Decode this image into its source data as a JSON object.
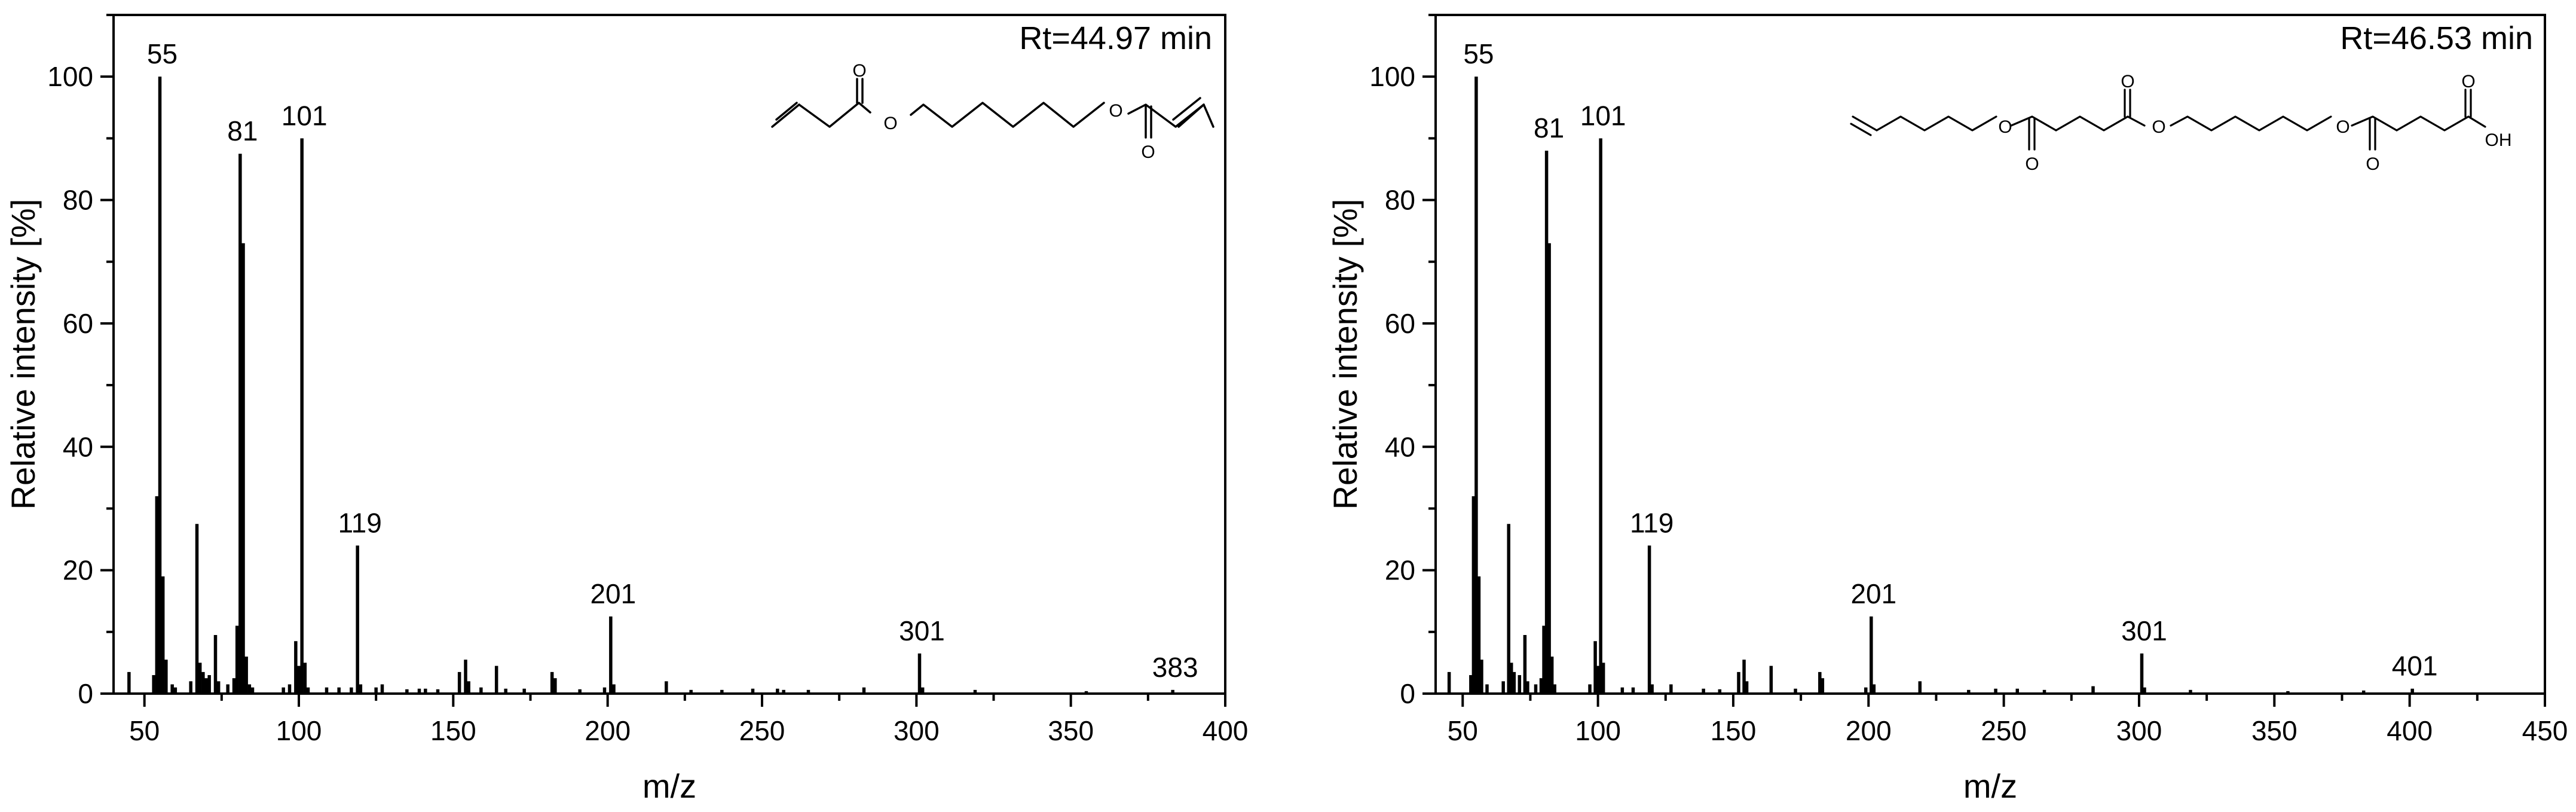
{
  "chart_data": [
    {
      "type": "bar",
      "xlabel": "m/z",
      "ylabel": "Relative intensity [%]",
      "xlim": [
        40,
        400
      ],
      "ylim": [
        0,
        110
      ],
      "xticks": [
        50,
        100,
        150,
        200,
        250,
        300,
        350,
        400
      ],
      "yticks": [
        0,
        20,
        40,
        60,
        80,
        100
      ],
      "annotation": "Rt=44.97 min",
      "structure_atoms": [
        "O",
        "O",
        "O",
        "O"
      ],
      "peaks": [
        {
          "x": 45,
          "y": 3.5
        },
        {
          "x": 53,
          "y": 3
        },
        {
          "x": 54,
          "y": 32
        },
        {
          "x": 55,
          "y": 100,
          "label": "55"
        },
        {
          "x": 56,
          "y": 19
        },
        {
          "x": 57,
          "y": 5.5
        },
        {
          "x": 59,
          "y": 1.5
        },
        {
          "x": 60,
          "y": 1
        },
        {
          "x": 65,
          "y": 2
        },
        {
          "x": 67,
          "y": 27.5
        },
        {
          "x": 68,
          "y": 5
        },
        {
          "x": 69,
          "y": 3.5
        },
        {
          "x": 70,
          "y": 2.5
        },
        {
          "x": 71,
          "y": 3
        },
        {
          "x": 73,
          "y": 9.5
        },
        {
          "x": 74,
          "y": 2
        },
        {
          "x": 77,
          "y": 1.5
        },
        {
          "x": 79,
          "y": 2.5
        },
        {
          "x": 80,
          "y": 11
        },
        {
          "x": 81,
          "y": 87.5,
          "label": "81"
        },
        {
          "x": 82,
          "y": 73
        },
        {
          "x": 83,
          "y": 6
        },
        {
          "x": 84,
          "y": 1.5
        },
        {
          "x": 85,
          "y": 1
        },
        {
          "x": 95,
          "y": 1
        },
        {
          "x": 97,
          "y": 1.5
        },
        {
          "x": 99,
          "y": 8.5
        },
        {
          "x": 100,
          "y": 4.5
        },
        {
          "x": 101,
          "y": 90,
          "label": "101"
        },
        {
          "x": 102,
          "y": 5
        },
        {
          "x": 103,
          "y": 1
        },
        {
          "x": 109,
          "y": 1
        },
        {
          "x": 113,
          "y": 1
        },
        {
          "x": 117,
          "y": 1
        },
        {
          "x": 119,
          "y": 24,
          "label": "119"
        },
        {
          "x": 120,
          "y": 1.5
        },
        {
          "x": 125,
          "y": 1
        },
        {
          "x": 127,
          "y": 1.5
        },
        {
          "x": 135,
          "y": 0.7
        },
        {
          "x": 139,
          "y": 0.8
        },
        {
          "x": 141,
          "y": 0.8
        },
        {
          "x": 145,
          "y": 0.7
        },
        {
          "x": 152,
          "y": 3.5
        },
        {
          "x": 154,
          "y": 5.5
        },
        {
          "x": 155,
          "y": 2
        },
        {
          "x": 159,
          "y": 1
        },
        {
          "x": 164,
          "y": 4.5
        },
        {
          "x": 167,
          "y": 0.8
        },
        {
          "x": 173,
          "y": 0.8
        },
        {
          "x": 182,
          "y": 3.5
        },
        {
          "x": 183,
          "y": 2.5
        },
        {
          "x": 191,
          "y": 0.7
        },
        {
          "x": 199,
          "y": 1
        },
        {
          "x": 201,
          "y": 12.5,
          "label": "201"
        },
        {
          "x": 202,
          "y": 1.5
        },
        {
          "x": 219,
          "y": 2
        },
        {
          "x": 227,
          "y": 0.6
        },
        {
          "x": 237,
          "y": 0.6
        },
        {
          "x": 247,
          "y": 0.8
        },
        {
          "x": 255,
          "y": 0.8
        },
        {
          "x": 257,
          "y": 0.6
        },
        {
          "x": 265,
          "y": 0.6
        },
        {
          "x": 283,
          "y": 1
        },
        {
          "x": 301,
          "y": 6.5,
          "label": "301"
        },
        {
          "x": 302,
          "y": 1
        },
        {
          "x": 319,
          "y": 0.6
        },
        {
          "x": 355,
          "y": 0.4
        },
        {
          "x": 383,
          "y": 0.6,
          "label": "383"
        }
      ]
    },
    {
      "type": "bar",
      "xlabel": "m/z",
      "ylabel": "Relative intensity [%]",
      "xlim": [
        40,
        450
      ],
      "ylim": [
        0,
        110
      ],
      "xticks": [
        50,
        100,
        150,
        200,
        250,
        300,
        350,
        400,
        450
      ],
      "yticks": [
        0,
        20,
        40,
        60,
        80,
        100
      ],
      "annotation": "Rt=46.53 min",
      "structure_atoms": [
        "O",
        "O",
        "O",
        "O",
        "O",
        "O",
        "O",
        "OH"
      ],
      "peaks": [
        {
          "x": 45,
          "y": 3.5
        },
        {
          "x": 53,
          "y": 3
        },
        {
          "x": 54,
          "y": 32
        },
        {
          "x": 55,
          "y": 100,
          "label": "55"
        },
        {
          "x": 56,
          "y": 19
        },
        {
          "x": 57,
          "y": 5.5
        },
        {
          "x": 59,
          "y": 1.5
        },
        {
          "x": 65,
          "y": 2
        },
        {
          "x": 67,
          "y": 27.5
        },
        {
          "x": 68,
          "y": 5
        },
        {
          "x": 69,
          "y": 3.5
        },
        {
          "x": 71,
          "y": 3
        },
        {
          "x": 73,
          "y": 9.5
        },
        {
          "x": 74,
          "y": 2
        },
        {
          "x": 77,
          "y": 1.5
        },
        {
          "x": 79,
          "y": 2.5
        },
        {
          "x": 80,
          "y": 11
        },
        {
          "x": 81,
          "y": 88,
          "label": "81"
        },
        {
          "x": 82,
          "y": 73
        },
        {
          "x": 83,
          "y": 6
        },
        {
          "x": 84,
          "y": 1.5
        },
        {
          "x": 97,
          "y": 1.5
        },
        {
          "x": 99,
          "y": 8.5
        },
        {
          "x": 100,
          "y": 4.5
        },
        {
          "x": 101,
          "y": 90,
          "label": "101"
        },
        {
          "x": 102,
          "y": 5
        },
        {
          "x": 109,
          "y": 1
        },
        {
          "x": 113,
          "y": 1
        },
        {
          "x": 119,
          "y": 24,
          "label": "119"
        },
        {
          "x": 120,
          "y": 1.5
        },
        {
          "x": 127,
          "y": 1.5
        },
        {
          "x": 139,
          "y": 0.8
        },
        {
          "x": 145,
          "y": 0.7
        },
        {
          "x": 152,
          "y": 3.5
        },
        {
          "x": 154,
          "y": 5.5
        },
        {
          "x": 155,
          "y": 2
        },
        {
          "x": 164,
          "y": 4.5
        },
        {
          "x": 173,
          "y": 0.8
        },
        {
          "x": 182,
          "y": 3.5
        },
        {
          "x": 183,
          "y": 2.5
        },
        {
          "x": 199,
          "y": 1
        },
        {
          "x": 201,
          "y": 12.5,
          "label": "201"
        },
        {
          "x": 202,
          "y": 1.5
        },
        {
          "x": 219,
          "y": 2
        },
        {
          "x": 237,
          "y": 0.6
        },
        {
          "x": 247,
          "y": 0.8
        },
        {
          "x": 255,
          "y": 0.8
        },
        {
          "x": 265,
          "y": 0.6
        },
        {
          "x": 283,
          "y": 1.2
        },
        {
          "x": 301,
          "y": 6.5,
          "label": "301"
        },
        {
          "x": 302,
          "y": 1
        },
        {
          "x": 319,
          "y": 0.6
        },
        {
          "x": 355,
          "y": 0.4
        },
        {
          "x": 383,
          "y": 0.5
        },
        {
          "x": 401,
          "y": 0.8,
          "label": "401"
        }
      ]
    }
  ]
}
